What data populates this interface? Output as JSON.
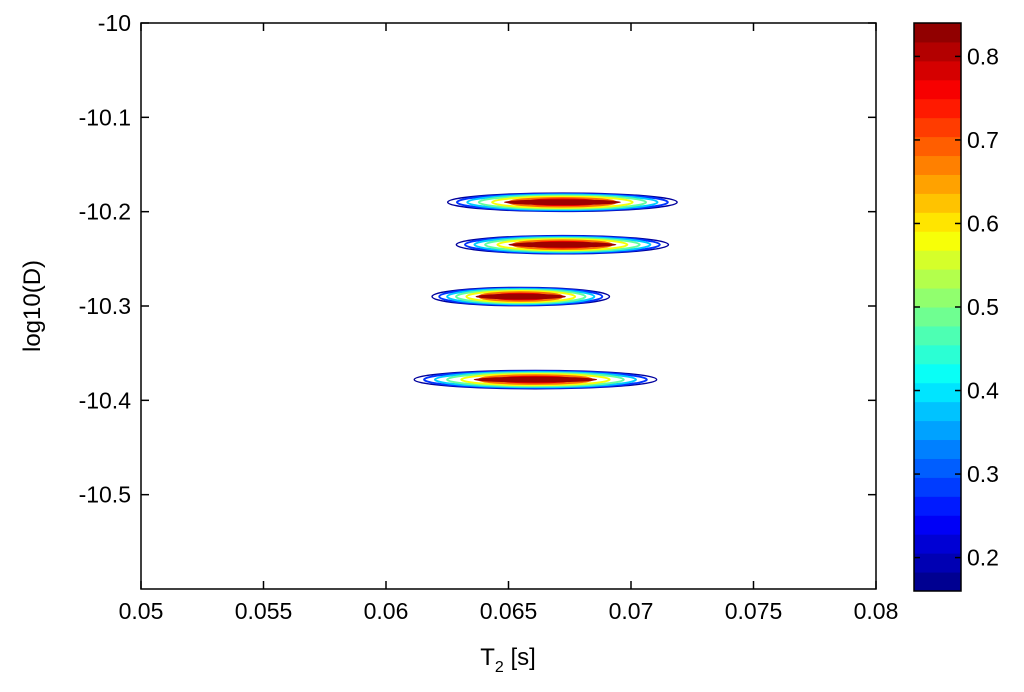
{
  "chart_data": {
    "type": "contour",
    "xlabel": "T",
    "xlabel_subscript": "2",
    "xlabel_unit": " [s]",
    "ylabel": "log10(D)",
    "xlim": [
      0.05,
      0.08
    ],
    "ylim": [
      -10.6,
      -10.0
    ],
    "y_axis_direction": "reversed",
    "x_ticks": [
      0.05,
      0.055,
      0.06,
      0.065,
      0.07,
      0.075,
      0.08
    ],
    "x_tick_labels": [
      "0.05",
      "0.055",
      "0.06",
      "0.065",
      "0.07",
      "0.075",
      "0.08"
    ],
    "y_ticks": [
      -10.0,
      -10.1,
      -10.2,
      -10.3,
      -10.4,
      -10.5
    ],
    "y_tick_labels": [
      "-10",
      "-10.1",
      "-10.2",
      "-10.3",
      "-10.4",
      "-10.5"
    ],
    "grid": false,
    "colormap": "jet",
    "colorbar": {
      "position": "right",
      "range": [
        0.16,
        0.84
      ],
      "ticks": [
        0.2,
        0.3,
        0.4,
        0.5,
        0.6,
        0.7,
        0.8
      ],
      "tick_labels": [
        "0.2",
        "0.3",
        "0.4",
        "0.5",
        "0.6",
        "0.7",
        "0.8"
      ]
    },
    "peaks": [
      {
        "t2_center": 0.0672,
        "t2_halfwidth": 0.0053,
        "log10D": -10.19,
        "log10D_halfwidth": 0.011,
        "peak_value": 0.82
      },
      {
        "t2_center": 0.0672,
        "t2_halfwidth": 0.0049,
        "log10D": -10.235,
        "log10D_halfwidth": 0.011,
        "peak_value": 0.82
      },
      {
        "t2_center": 0.0655,
        "t2_halfwidth": 0.0041,
        "log10D": -10.29,
        "log10D_halfwidth": 0.011,
        "peak_value": 0.82
      },
      {
        "t2_center": 0.0661,
        "t2_halfwidth": 0.0056,
        "log10D": -10.378,
        "log10D_halfwidth": 0.011,
        "peak_value": 0.82
      }
    ]
  }
}
